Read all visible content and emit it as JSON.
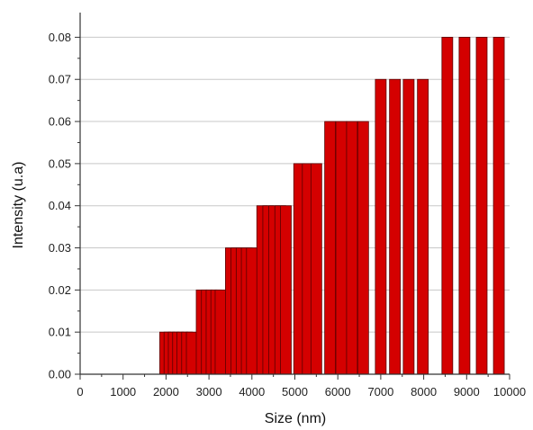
{
  "chart_data": {
    "type": "bar",
    "xlabel": "Size (nm)",
    "ylabel": "Intensity (u.a)",
    "xlim": [
      0,
      10000
    ],
    "ylim": [
      0,
      0.085
    ],
    "x_ticks": [
      0,
      1000,
      2000,
      3000,
      4000,
      5000,
      6000,
      7000,
      8000,
      9000,
      10000
    ],
    "x_tick_labels": [
      "0",
      "1000",
      "2000",
      "3000",
      "4000",
      "5000",
      "6000",
      "7000",
      "8000",
      "9000",
      "10000"
    ],
    "y_ticks": [
      0,
      0.01,
      0.02,
      0.03,
      0.04,
      0.05,
      0.06,
      0.07,
      0.08
    ],
    "y_tick_labels": [
      "0.00",
      "0.01",
      "0.02",
      "0.03",
      "0.04",
      "0.05",
      "0.06",
      "0.07",
      "0.08"
    ],
    "grid": "horizontal",
    "bar_color": "#d40000",
    "bar_edge_color": "#5a0000",
    "bars": [
      {
        "x": 1980,
        "value": 0.01
      },
      {
        "x": 2080,
        "value": 0.01
      },
      {
        "x": 2180,
        "value": 0.01
      },
      {
        "x": 2280,
        "value": 0.01
      },
      {
        "x": 2380,
        "value": 0.01
      },
      {
        "x": 2490,
        "value": 0.01
      },
      {
        "x": 2600,
        "value": 0.01
      },
      {
        "x": 2830,
        "value": 0.02
      },
      {
        "x": 2950,
        "value": 0.02
      },
      {
        "x": 3060,
        "value": 0.02
      },
      {
        "x": 3170,
        "value": 0.02
      },
      {
        "x": 3270,
        "value": 0.02
      },
      {
        "x": 3510,
        "value": 0.03
      },
      {
        "x": 3640,
        "value": 0.03
      },
      {
        "x": 3760,
        "value": 0.03
      },
      {
        "x": 3880,
        "value": 0.03
      },
      {
        "x": 4000,
        "value": 0.03
      },
      {
        "x": 4240,
        "value": 0.04
      },
      {
        "x": 4380,
        "value": 0.04
      },
      {
        "x": 4520,
        "value": 0.04
      },
      {
        "x": 4660,
        "value": 0.04
      },
      {
        "x": 4790,
        "value": 0.04
      },
      {
        "x": 5100,
        "value": 0.05
      },
      {
        "x": 5300,
        "value": 0.05
      },
      {
        "x": 5500,
        "value": 0.05
      },
      {
        "x": 5820,
        "value": 0.06
      },
      {
        "x": 6080,
        "value": 0.06
      },
      {
        "x": 6330,
        "value": 0.06
      },
      {
        "x": 6590,
        "value": 0.06
      },
      {
        "x": 7000,
        "value": 0.07
      },
      {
        "x": 7330,
        "value": 0.07
      },
      {
        "x": 7650,
        "value": 0.07
      },
      {
        "x": 7980,
        "value": 0.07
      },
      {
        "x": 8550,
        "value": 0.08
      },
      {
        "x": 8950,
        "value": 0.08
      },
      {
        "x": 9350,
        "value": 0.08
      },
      {
        "x": 9750,
        "value": 0.08
      }
    ]
  }
}
